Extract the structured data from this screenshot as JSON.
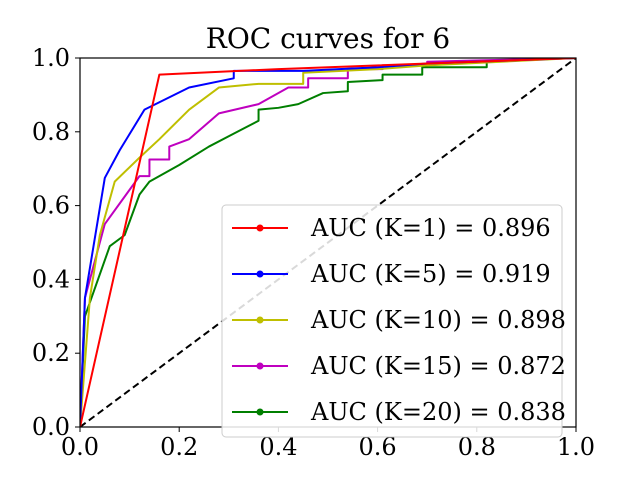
{
  "chart_data": {
    "type": "line",
    "title": "ROC curves for 6",
    "xlabel": "",
    "ylabel": "",
    "xlim": [
      0.0,
      1.0
    ],
    "ylim": [
      0.0,
      1.0
    ],
    "xticks": [
      "0.0",
      "0.2",
      "0.4",
      "0.6",
      "0.8",
      "1.0"
    ],
    "yticks": [
      "0.0",
      "0.2",
      "0.4",
      "0.6",
      "0.8",
      "1.0"
    ],
    "grid": false,
    "legend_position": "lower-right",
    "diagonal": {
      "x": [
        0.0,
        1.0
      ],
      "y": [
        0.0,
        1.0
      ],
      "color": "#000000",
      "style": "dashed"
    },
    "series": [
      {
        "name": "AUC (K=1) = 0.896",
        "color": "#ff0000",
        "x": [
          0.0,
          0.16,
          0.4,
          1.0
        ],
        "y": [
          0.0,
          0.955,
          0.97,
          1.0
        ]
      },
      {
        "name": "AUC (K=5) = 0.919",
        "color": "#0000ff",
        "x": [
          0.0,
          0.01,
          0.05,
          0.08,
          0.13,
          0.16,
          0.22,
          0.31,
          0.31,
          0.45,
          0.6,
          0.7,
          1.0
        ],
        "y": [
          0.0,
          0.35,
          0.675,
          0.75,
          0.86,
          0.88,
          0.92,
          0.945,
          0.965,
          0.965,
          0.975,
          0.985,
          1.0
        ]
      },
      {
        "name": "AUC (K=10) = 0.898",
        "color": "#bfbf00",
        "x": [
          0.0,
          0.02,
          0.04,
          0.07,
          0.12,
          0.16,
          0.22,
          0.28,
          0.36,
          0.45,
          0.45,
          0.6,
          0.7,
          1.0
        ],
        "y": [
          0.0,
          0.35,
          0.52,
          0.665,
          0.73,
          0.78,
          0.86,
          0.92,
          0.93,
          0.93,
          0.96,
          0.97,
          0.98,
          1.0
        ]
      },
      {
        "name": "AUC (K=15) = 0.872",
        "color": "#bf00bf",
        "x": [
          0.0,
          0.01,
          0.05,
          0.12,
          0.14,
          0.14,
          0.18,
          0.18,
          0.22,
          0.28,
          0.36,
          0.42,
          0.46,
          0.46,
          0.54,
          0.54,
          0.61,
          0.61,
          0.7,
          0.7,
          1.0
        ],
        "y": [
          0.0,
          0.35,
          0.55,
          0.68,
          0.68,
          0.725,
          0.725,
          0.76,
          0.78,
          0.85,
          0.875,
          0.92,
          0.92,
          0.945,
          0.945,
          0.97,
          0.97,
          0.98,
          0.98,
          0.99,
          1.0
        ]
      },
      {
        "name": "AUC (K=20) = 0.838",
        "color": "#007f00",
        "x": [
          0.0,
          0.01,
          0.06,
          0.09,
          0.12,
          0.14,
          0.2,
          0.26,
          0.31,
          0.36,
          0.36,
          0.4,
          0.44,
          0.49,
          0.54,
          0.54,
          0.61,
          0.61,
          0.69,
          0.69,
          0.82,
          0.82,
          1.0
        ],
        "y": [
          0.0,
          0.3,
          0.49,
          0.52,
          0.63,
          0.665,
          0.71,
          0.76,
          0.795,
          0.83,
          0.86,
          0.865,
          0.875,
          0.905,
          0.91,
          0.935,
          0.94,
          0.955,
          0.955,
          0.975,
          0.975,
          0.99,
          1.0
        ]
      }
    ]
  }
}
